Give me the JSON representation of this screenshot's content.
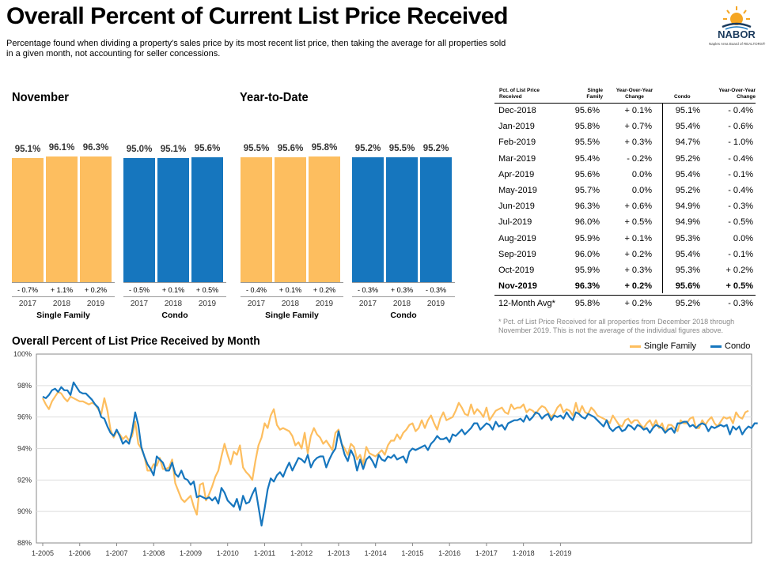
{
  "header": {
    "title": "Overall Percent of Current List Price Received",
    "subtitle": "Percentage found when dividing a property's sales price by its most recent list price, then taking the average for all properties sold in a given month, not accounting for seller concessions.",
    "logo_text": "NABOR",
    "logo_subtext": "Naples Area Board of REALTORS®"
  },
  "colors": {
    "single_family": "#FDBE5F",
    "condo": "#1676BE"
  },
  "bar_panels": [
    {
      "title": "November",
      "groups": [
        {
          "name": "Single Family",
          "color": "#FDBE5F",
          "years": [
            "2017",
            "2018",
            "2019"
          ],
          "values": [
            "95.1%",
            "96.1%",
            "96.3%"
          ],
          "changes": [
            "- 0.7%",
            "+ 1.1%",
            "+ 0.2%"
          ]
        },
        {
          "name": "Condo",
          "color": "#1676BE",
          "years": [
            "2017",
            "2018",
            "2019"
          ],
          "values": [
            "95.0%",
            "95.1%",
            "95.6%"
          ],
          "changes": [
            "- 0.5%",
            "+ 0.1%",
            "+ 0.5%"
          ]
        }
      ]
    },
    {
      "title": "Year-to-Date",
      "groups": [
        {
          "name": "Single Family",
          "color": "#FDBE5F",
          "years": [
            "2017",
            "2018",
            "2019"
          ],
          "values": [
            "95.5%",
            "95.6%",
            "95.8%"
          ],
          "changes": [
            "- 0.4%",
            "+ 0.1%",
            "+ 0.2%"
          ]
        },
        {
          "name": "Condo",
          "color": "#1676BE",
          "years": [
            "2017",
            "2018",
            "2019"
          ],
          "values": [
            "95.2%",
            "95.5%",
            "95.2%"
          ],
          "changes": [
            "- 0.3%",
            "+ 0.3%",
            "- 0.3%"
          ]
        }
      ]
    }
  ],
  "table": {
    "headers": [
      "Pct. of List Price Received",
      "Single Family",
      "Year-Over-Year Change",
      "Condo",
      "Year-Over-Year Change"
    ],
    "rows": [
      [
        "Dec-2018",
        "95.6%",
        "+ 0.1%",
        "95.1%",
        "- 0.4%"
      ],
      [
        "Jan-2019",
        "95.8%",
        "+ 0.7%",
        "95.4%",
        "- 0.6%"
      ],
      [
        "Feb-2019",
        "95.5%",
        "+ 0.3%",
        "94.7%",
        "- 1.0%"
      ],
      [
        "Mar-2019",
        "95.4%",
        "- 0.2%",
        "95.2%",
        "- 0.4%"
      ],
      [
        "Apr-2019",
        "95.6%",
        "0.0%",
        "95.4%",
        "- 0.1%"
      ],
      [
        "May-2019",
        "95.7%",
        "0.0%",
        "95.2%",
        "- 0.4%"
      ],
      [
        "Jun-2019",
        "96.3%",
        "+ 0.6%",
        "94.9%",
        "- 0.3%"
      ],
      [
        "Jul-2019",
        "96.0%",
        "+ 0.5%",
        "94.9%",
        "- 0.5%"
      ],
      [
        "Aug-2019",
        "95.9%",
        "+ 0.1%",
        "95.3%",
        "0.0%"
      ],
      [
        "Sep-2019",
        "96.0%",
        "+ 0.2%",
        "95.4%",
        "- 0.1%"
      ],
      [
        "Oct-2019",
        "95.9%",
        "+ 0.3%",
        "95.3%",
        "+ 0.2%"
      ],
      [
        "Nov-2019",
        "96.3%",
        "+ 0.2%",
        "95.6%",
        "+ 0.5%"
      ],
      [
        "12-Month Avg*",
        "95.8%",
        "+ 0.2%",
        "95.2%",
        "- 0.3%"
      ]
    ],
    "note": "* Pct. of List Price Received for all properties from December 2018 through November 2019. This is not the average of the individual figures above."
  },
  "chart_data": {
    "type": "line",
    "title": "Overall Percent of List Price Received by Month",
    "ylim": [
      88,
      100
    ],
    "y_ticks": [
      "88%",
      "90%",
      "92%",
      "94%",
      "96%",
      "98%",
      "100%"
    ],
    "x_ticks": [
      "1-2005",
      "1-2006",
      "1-2007",
      "1-2008",
      "1-2009",
      "1-2010",
      "1-2011",
      "1-2012",
      "1-2013",
      "1-2014",
      "1-2015",
      "1-2016",
      "1-2017",
      "1-2018",
      "1-2019"
    ],
    "x_start": "2005-01",
    "legend": "top-right",
    "series": [
      {
        "name": "Single Family",
        "color": "#FDBE5F",
        "values": [
          97.2,
          96.8,
          96.5,
          97.0,
          97.3,
          97.6,
          97.5,
          97.2,
          97.0,
          97.3,
          97.2,
          97.1,
          97.0,
          97.0,
          96.9,
          96.8,
          96.9,
          96.8,
          96.5,
          96.2,
          97.2,
          96.4,
          95.2,
          94.7,
          95.1,
          94.9,
          94.6,
          94.8,
          94.5,
          94.8,
          95.7,
          94.3,
          94.0,
          93.5,
          92.6,
          92.6,
          93.0,
          92.9,
          93.4,
          92.7,
          92.7,
          92.8,
          93.3,
          91.8,
          91.3,
          90.8,
          90.6,
          90.8,
          91.0,
          90.3,
          89.8,
          91.7,
          91.8,
          90.7,
          91.1,
          91.6,
          92.2,
          92.6,
          93.5,
          94.3,
          93.6,
          93.0,
          93.8,
          93.6,
          94.2,
          92.8,
          92.5,
          92.3,
          92.0,
          93.2,
          94.2,
          94.7,
          95.6,
          95.3,
          96.1,
          96.5,
          95.5,
          95.2,
          95.3,
          95.2,
          95.1,
          94.8,
          94.2,
          94.4,
          94.0,
          95.0,
          93.7,
          94.8,
          95.3,
          94.9,
          94.7,
          94.3,
          94.5,
          94.2,
          93.9,
          95.0,
          95.2,
          94.3,
          94.0,
          93.6,
          94.3,
          94.1,
          93.3,
          93.6,
          93.0,
          94.1,
          93.7,
          93.6,
          93.5,
          93.7,
          93.9,
          93.6,
          94.2,
          94.5,
          94.5,
          94.9,
          94.6,
          95.0,
          95.2,
          95.5,
          95.6,
          95.1,
          95.3,
          95.8,
          95.3,
          95.8,
          96.1,
          95.6,
          95.2,
          95.9,
          96.3,
          95.8,
          95.9,
          96.0,
          96.4,
          96.9,
          96.6,
          96.2,
          96.1,
          96.8,
          96.2,
          96.5,
          96.3,
          96.0,
          96.6,
          95.8,
          96.1,
          96.4,
          96.5,
          96.6,
          96.3,
          96.2,
          96.8,
          96.5,
          96.6,
          96.6,
          96.8,
          96.3,
          96.5,
          96.4,
          96.2,
          96.5,
          96.7,
          96.6,
          96.3,
          96.0,
          96.2,
          96.6,
          96.8,
          96.3,
          96.5,
          96.4,
          96.1,
          96.9,
          96.2,
          96.7,
          96.3,
          96.2,
          96.6,
          96.4,
          96.1,
          96.0,
          95.9,
          95.8,
          95.6,
          96.1,
          95.8,
          95.5,
          95.4,
          95.8,
          95.9,
          95.6,
          95.8,
          95.8,
          95.5,
          95.3,
          95.6,
          95.8,
          95.4,
          95.8,
          95.3,
          95.6,
          95.0,
          95.5,
          95.5,
          95.3,
          95.1,
          95.8,
          95.6,
          95.6,
          95.9,
          96.0,
          95.3,
          95.3,
          95.8,
          95.5,
          95.8,
          96.0,
          95.6,
          95.4,
          95.7,
          96.0,
          95.9,
          96.0,
          95.6,
          96.3,
          96.0,
          95.9,
          96.3,
          96.4
        ]
      },
      {
        "name": "Condo",
        "color": "#1676BE",
        "values": [
          97.3,
          97.2,
          97.4,
          97.7,
          97.8,
          97.6,
          97.9,
          97.7,
          97.7,
          97.4,
          98.2,
          97.9,
          97.6,
          97.5,
          97.5,
          97.3,
          97.1,
          96.8,
          96.6,
          96.0,
          95.9,
          95.4,
          95.0,
          94.8,
          95.2,
          94.8,
          94.3,
          94.5,
          94.3,
          95.1,
          96.3,
          95.5,
          94.1,
          93.5,
          93.0,
          92.7,
          92.3,
          93.5,
          93.3,
          93.1,
          92.6,
          92.6,
          93.1,
          92.4,
          92.2,
          92.6,
          92.1,
          92.0,
          91.7,
          91.9,
          90.9,
          91.0,
          90.9,
          90.8,
          90.9,
          90.7,
          90.9,
          90.5,
          91.5,
          91.2,
          90.7,
          90.5,
          90.3,
          90.8,
          90.1,
          91.0,
          90.5,
          90.6,
          91.1,
          91.5,
          90.3,
          89.1,
          90.2,
          91.4,
          92.1,
          91.9,
          92.3,
          92.5,
          92.2,
          92.7,
          93.1,
          92.6,
          93.0,
          93.4,
          93.3,
          93.1,
          93.6,
          92.8,
          93.2,
          93.4,
          93.5,
          93.5,
          92.8,
          93.3,
          93.7,
          94.0,
          95.1,
          94.3,
          93.6,
          93.2,
          93.9,
          93.5,
          92.6,
          93.3,
          92.7,
          93.3,
          93.5,
          93.2,
          92.8,
          93.6,
          93.3,
          93.2,
          93.5,
          93.4,
          93.6,
          93.3,
          93.4,
          93.5,
          93.1,
          93.8,
          94.0,
          93.9,
          94.0,
          94.1,
          94.2,
          93.9,
          94.3,
          94.5,
          94.8,
          94.6,
          94.6,
          94.7,
          94.4,
          94.9,
          94.8,
          95.0,
          95.2,
          94.9,
          95.1,
          95.3,
          95.6,
          95.6,
          95.2,
          95.4,
          95.6,
          95.5,
          95.2,
          95.7,
          95.4,
          95.5,
          95.2,
          95.6,
          95.7,
          95.8,
          95.8,
          95.9,
          95.7,
          96.1,
          95.8,
          96.0,
          96.3,
          96.2,
          95.9,
          96.1,
          96.2,
          95.8,
          96.1,
          96.0,
          96.1,
          95.9,
          96.3,
          96.0,
          95.8,
          96.3,
          96.2,
          96.0,
          95.9,
          96.2,
          96.1,
          96.0,
          95.8,
          95.6,
          95.4,
          95.8,
          95.3,
          95.1,
          95.3,
          95.4,
          95.1,
          95.2,
          95.5,
          95.4,
          95.2,
          95.5,
          95.4,
          95.2,
          95.3,
          95.0,
          95.3,
          95.5,
          95.4,
          95.3,
          95.0,
          95.2,
          95.3,
          95.0,
          95.6,
          95.6,
          95.7,
          95.7,
          95.4,
          95.5,
          95.3,
          95.5,
          95.6,
          95.5,
          95.1,
          95.4,
          95.3,
          95.4,
          95.5,
          95.4,
          95.5,
          94.9,
          95.4,
          95.2,
          95.4,
          94.9,
          95.2,
          95.4,
          95.3,
          95.6,
          95.6
        ]
      }
    ]
  }
}
